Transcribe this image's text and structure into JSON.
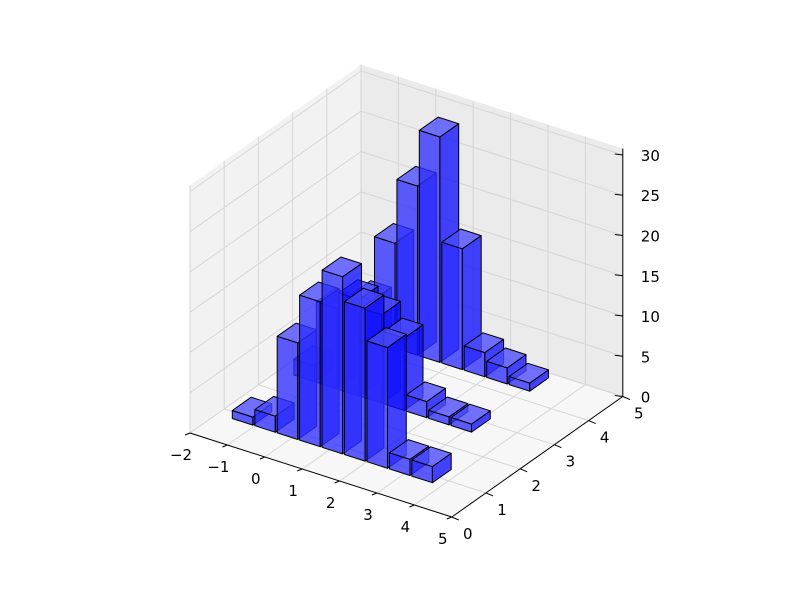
{
  "chart_data": {
    "type": "bar3d",
    "x_ticks": [
      "−2",
      "−1",
      "0",
      "1",
      "2",
      "3",
      "4",
      "5"
    ],
    "y_ticks": [
      "0",
      "1",
      "2",
      "3",
      "4",
      "5"
    ],
    "z_ticks": [
      "0",
      "5",
      "10",
      "15",
      "20",
      "25",
      "30"
    ],
    "xlim": [
      -2,
      5
    ],
    "ylim": [
      0,
      5
    ],
    "zlim": [
      0,
      30
    ],
    "grid": true,
    "bar_width": 0.55,
    "bar_depth": 0.55,
    "colors": {
      "bar": "#3030ff",
      "edge": "#000000",
      "pane_back": "#ebebeb",
      "pane_side": "#f2f2f2",
      "pane_floor": "#f7f7f7",
      "grid": "#d6d6d6"
    },
    "bars": [
      {
        "x": -1.6,
        "y": 4.3,
        "z": 5
      },
      {
        "x": -1.0,
        "y": 4.3,
        "z": 13
      },
      {
        "x": -0.4,
        "y": 4.3,
        "z": 21
      },
      {
        "x": 0.2,
        "y": 4.3,
        "z": 28
      },
      {
        "x": 0.8,
        "y": 4.3,
        "z": 15
      },
      {
        "x": 1.4,
        "y": 4.3,
        "z": 3
      },
      {
        "x": 2.0,
        "y": 4.3,
        "z": 2
      },
      {
        "x": 2.6,
        "y": 4.3,
        "z": 1
      },
      {
        "x": -1.6,
        "y": 2.6,
        "z": 2
      },
      {
        "x": -1.0,
        "y": 2.6,
        "z": 10
      },
      {
        "x": -0.4,
        "y": 2.6,
        "z": 12
      },
      {
        "x": 0.2,
        "y": 2.6,
        "z": 11
      },
      {
        "x": 0.8,
        "y": 2.6,
        "z": 9
      },
      {
        "x": 1.4,
        "y": 2.6,
        "z": 2
      },
      {
        "x": 2.0,
        "y": 2.6,
        "z": 1
      },
      {
        "x": 2.6,
        "y": 2.6,
        "z": 1
      },
      {
        "x": -1.6,
        "y": 0.8,
        "z": 1
      },
      {
        "x": -1.0,
        "y": 0.8,
        "z": 2
      },
      {
        "x": -0.4,
        "y": 0.8,
        "z": 12
      },
      {
        "x": 0.2,
        "y": 0.8,
        "z": 18
      },
      {
        "x": 0.8,
        "y": 0.8,
        "z": 22
      },
      {
        "x": 1.4,
        "y": 0.8,
        "z": 19
      },
      {
        "x": 2.0,
        "y": 0.8,
        "z": 15
      },
      {
        "x": 2.6,
        "y": 0.8,
        "z": 2
      },
      {
        "x": 3.2,
        "y": 0.8,
        "z": 2
      }
    ]
  }
}
